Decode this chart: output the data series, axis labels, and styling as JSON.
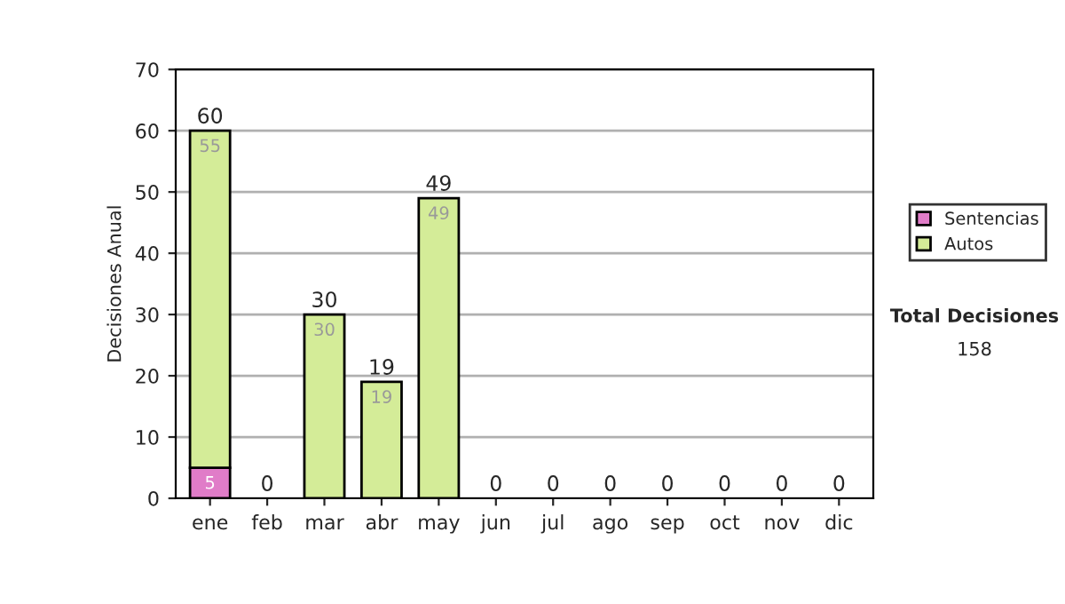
{
  "chart_data": {
    "type": "bar",
    "ylabel": "Decisiones Anual",
    "categories": [
      "ene",
      "feb",
      "mar",
      "abr",
      "may",
      "jun",
      "jul",
      "ago",
      "sep",
      "oct",
      "nov",
      "dic"
    ],
    "stacked": true,
    "series": [
      {
        "name": "Sentencias",
        "color": "#e07cc8",
        "values": [
          5,
          0,
          0,
          0,
          0,
          0,
          0,
          0,
          0,
          0,
          0,
          0
        ],
        "value_labels": [
          "5",
          null,
          null,
          null,
          null,
          null,
          null,
          null,
          null,
          null,
          null,
          null
        ]
      },
      {
        "name": "Autos",
        "color": "#d4ec98",
        "values": [
          55,
          0,
          30,
          19,
          49,
          0,
          0,
          0,
          0,
          0,
          0,
          0
        ],
        "value_labels": [
          "55",
          null,
          "30",
          "19",
          "49",
          null,
          null,
          null,
          null,
          null,
          null,
          null
        ]
      }
    ],
    "totals": [
      "60",
      "0",
      "30",
      "19",
      "49",
      "0",
      "0",
      "0",
      "0",
      "0",
      "0",
      "0"
    ],
    "ylim": [
      0,
      70
    ],
    "yticks": [
      0,
      10,
      20,
      30,
      40,
      50,
      60,
      70
    ],
    "grid": "y",
    "legend": "right",
    "annotations": [
      "Total Decisiones",
      "158"
    ]
  }
}
